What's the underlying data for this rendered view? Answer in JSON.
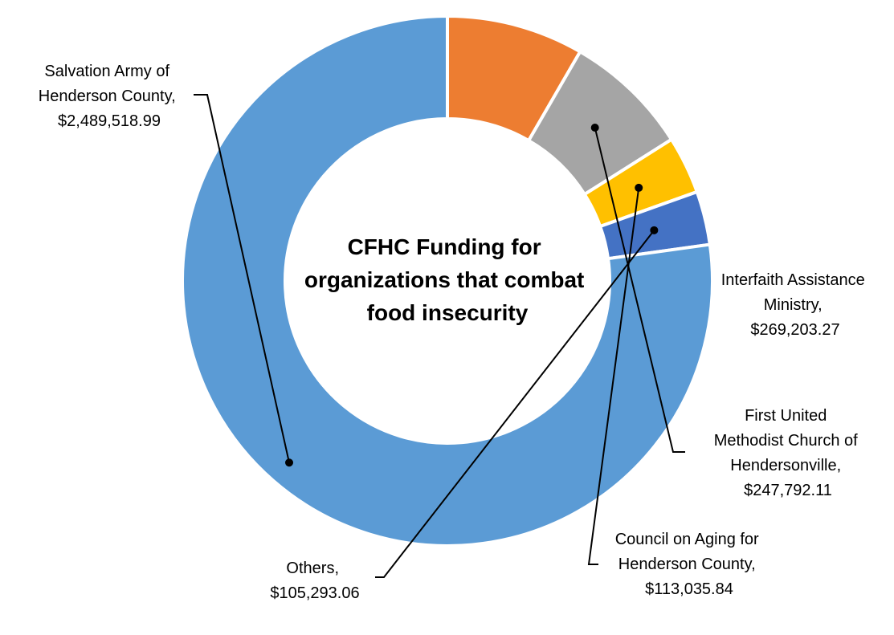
{
  "chart_data": {
    "type": "pie",
    "title": "CFHC Funding for organizations that combat food insecurity",
    "title_lines": [
      "CFHC Funding for",
      "organizations that combat",
      "food insecurity"
    ],
    "donut": true,
    "start_angle_deg": 90,
    "direction": "clockwise",
    "slices": [
      {
        "name": "Interfaith Assistance Ministry",
        "value": 269203.27,
        "value_label": "$269,203.27",
        "color": "#ED7D31",
        "label_lines": [
          "Interfaith Assistance",
          "Ministry,",
          "$269,203.27"
        ]
      },
      {
        "name": "First United Methodist Church of Hendersonville",
        "value": 247792.11,
        "value_label": "$247,792.11",
        "color": "#A5A5A5",
        "label_lines": [
          "First United",
          "Methodist Church of",
          "Hendersonville,",
          "$247,792.11"
        ]
      },
      {
        "name": "Council on Aging for Henderson County",
        "value": 113035.84,
        "value_label": "$113,035.84",
        "color": "#FFC000",
        "label_lines": [
          "Council on Aging for",
          "Henderson County,",
          "$113,035.84"
        ]
      },
      {
        "name": "Others",
        "value": 105293.06,
        "value_label": "$105,293.06",
        "color": "#4472C4",
        "label_lines": [
          "Others,",
          "$105,293.06"
        ]
      },
      {
        "name": "Salvation Army of Henderson County",
        "value": 2489518.99,
        "value_label": "$2,489,518.99",
        "color": "#5B9BD5",
        "label_lines": [
          "Salvation Army of",
          "Henderson County,",
          "$2,489,518.99"
        ]
      }
    ]
  }
}
